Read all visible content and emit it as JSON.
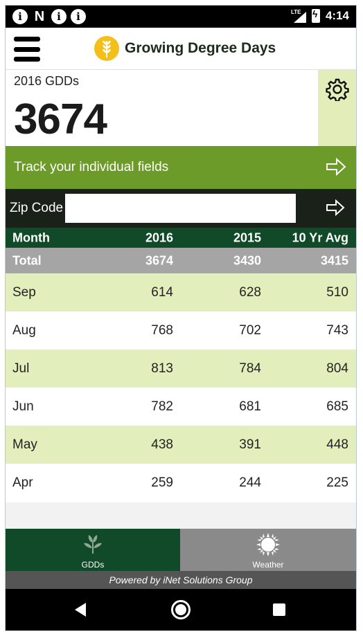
{
  "status_bar": {
    "notification_icons": [
      "info-icon",
      "n-icon",
      "info-icon",
      "info-icon"
    ],
    "network": "LTE",
    "time": "4:14"
  },
  "header": {
    "title": "Growing Degree Days",
    "logo_icon": "wheat-icon",
    "logo_color": "#f3bf18"
  },
  "summary": {
    "label": "2016 GDDs",
    "value": "3674"
  },
  "track": {
    "label": "Track your individual fields"
  },
  "zip": {
    "label": "Zip Code",
    "value": "",
    "placeholder": ""
  },
  "table": {
    "columns": [
      "Month",
      "2016",
      "2015",
      "10 Yr Avg"
    ],
    "total": [
      "Total",
      "3674",
      "3430",
      "3415"
    ],
    "rows": [
      [
        "Sep",
        "614",
        "628",
        "510"
      ],
      [
        "Aug",
        "768",
        "702",
        "743"
      ],
      [
        "Jul",
        "813",
        "784",
        "804"
      ],
      [
        "Jun",
        "782",
        "681",
        "685"
      ],
      [
        "May",
        "438",
        "391",
        "448"
      ],
      [
        "Apr",
        "259",
        "244",
        "225"
      ]
    ]
  },
  "nav": {
    "gdds_label": "GDDs",
    "weather_label": "Weather"
  },
  "footer": {
    "powered_by": "Powered by iNet Solutions Group"
  },
  "colors": {
    "dark_green": "#104a28",
    "leaf_green": "#6d9b2a",
    "light_green": "#e2efbc"
  }
}
